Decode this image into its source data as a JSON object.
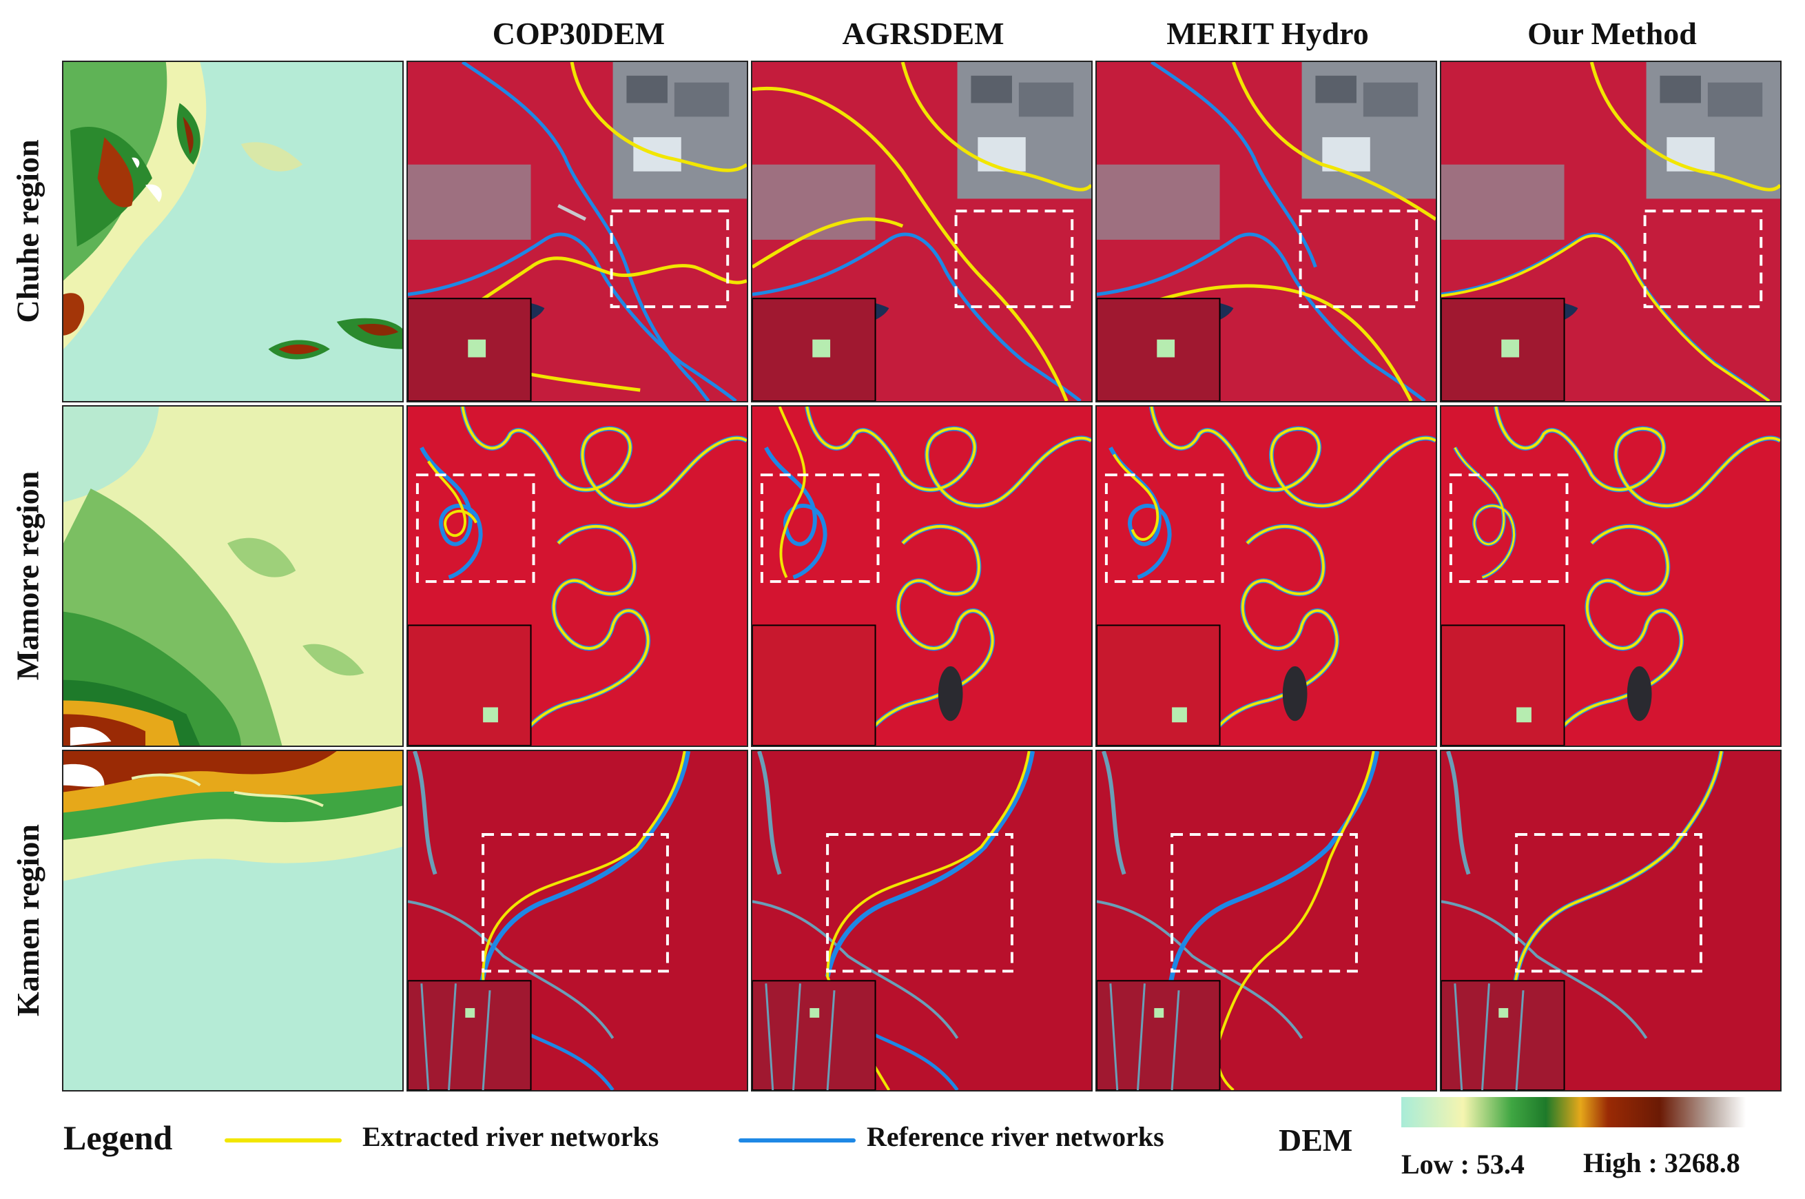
{
  "columns": [
    "COP30DEM",
    "AGRSDEM",
    "MERIT Hydro",
    "Our Method"
  ],
  "rows": [
    "Chuhe region",
    "Mamore region",
    "Kamen region"
  ],
  "legend": {
    "title": "Legend",
    "extracted_label": "Extracted river networks",
    "reference_label": "Reference river networks",
    "dem_label": "DEM",
    "low_label": "Low : 53.4",
    "high_label": "High : 3268.8",
    "colors": {
      "extracted": "#f2e600",
      "reference": "#1e88e5",
      "ramp": [
        "#a8ecd8",
        "#f5f5b0",
        "#3fa642",
        "#1e7a2a",
        "#e6a81a",
        "#9a2a05",
        "#6b1a05",
        "#b8a8a0",
        "#ffffff"
      ]
    }
  }
}
